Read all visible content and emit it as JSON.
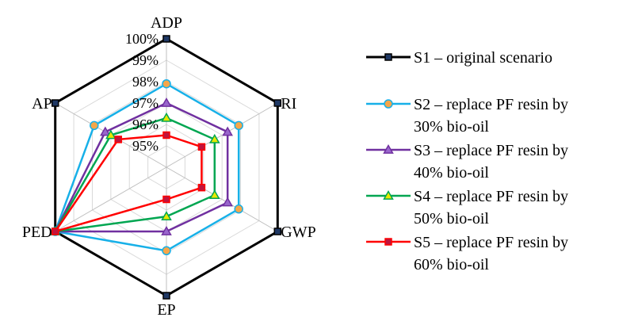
{
  "chart_data": {
    "type": "radar",
    "axes": [
      "ADP",
      "RI",
      "GWP",
      "EP",
      "PED",
      "AP"
    ],
    "tick_labels": [
      "95%",
      "96%",
      "97%",
      "98%",
      "99%",
      "100%"
    ],
    "rlim": [
      94,
      100
    ],
    "grid": true,
    "legend_placement": "right",
    "series": [
      {
        "name": "S1 – original scenario",
        "values": [
          100,
          100,
          100,
          100,
          100,
          100
        ],
        "color": "#000000",
        "marker": "square",
        "marker_fill": "#1f3864",
        "marker_stroke": "#000000",
        "line_width": 3
      },
      {
        "name": "S2 – replace PF resin by 30% bio-oil",
        "values": [
          97.9,
          97.9,
          97.9,
          97.9,
          100,
          97.9
        ],
        "color": "#17b0e8",
        "marker": "circle",
        "marker_fill": "#f5a64a",
        "marker_stroke": "#17b0e8",
        "line_width": 2.5
      },
      {
        "name": "S3 – replace PF resin by 40% bio-oil",
        "values": [
          97.0,
          97.3,
          97.3,
          97.0,
          100,
          97.3
        ],
        "color": "#7030a0",
        "marker": "triangle",
        "marker_fill": "#9966cc",
        "marker_stroke": "#7030a0",
        "line_width": 2.5
      },
      {
        "name": "S4 – replace PF resin by 50% bio-oil",
        "values": [
          96.3,
          96.6,
          96.6,
          96.3,
          100,
          97.0
        ],
        "color": "#00a651",
        "marker": "triangle",
        "marker_fill": "#e8e800",
        "marker_stroke": "#00a651",
        "line_width": 2.5
      },
      {
        "name": "S5 – replace PF resin by 60% bio-oil",
        "values": [
          95.5,
          95.9,
          95.9,
          95.5,
          100,
          96.6
        ],
        "color": "#ff0000",
        "marker": "square",
        "marker_fill": "#c0143c",
        "marker_stroke": "#ff0000",
        "line_width": 2.5
      }
    ],
    "legend": [
      {
        "line1": "S1 – original scenario",
        "line2": ""
      },
      {
        "line1": "S2 – replace PF resin by",
        "line2": "30% bio-oil"
      },
      {
        "line1": "S3 – replace PF resin by",
        "line2": "40% bio-oil"
      },
      {
        "line1": "S4 – replace PF resin by",
        "line2": "50% bio-oil"
      },
      {
        "line1": "S5 – replace PF resin by",
        "line2": "60% bio-oil"
      }
    ]
  }
}
